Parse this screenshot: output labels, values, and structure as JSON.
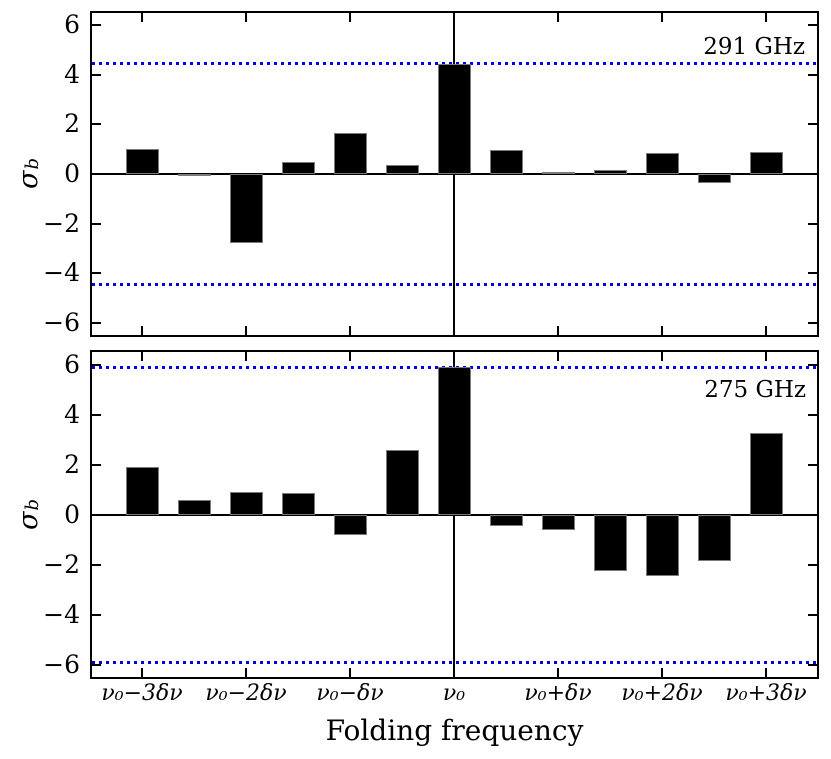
{
  "chart_data": {
    "type": "bar",
    "xlabel": "Folding frequency",
    "ylabel": "σ_b",
    "ylabel_base": "σ",
    "ylabel_sub": "b",
    "ylim": [
      -6.5,
      6.5
    ],
    "yticks": [
      6,
      4,
      2,
      0,
      -2,
      -4,
      -6
    ],
    "ytick_labels": [
      "6",
      "4",
      "2",
      "0",
      "−2",
      "−4",
      "−6"
    ],
    "x_tick_positions_delta_nu": [
      -3,
      -2,
      -1,
      0,
      1,
      2,
      3
    ],
    "x_tick_labels": [
      "ν₀−3δν",
      "ν₀−2δν",
      "ν₀−δν",
      "ν₀",
      "ν₀+δν",
      "ν₀+2δν",
      "ν₀+3δν"
    ],
    "xlim_delta_nu": [
      -3.5,
      3.5
    ],
    "x_categories_delta_nu": [
      -3,
      -2.5,
      -2,
      -1.5,
      -1,
      -0.5,
      0,
      0.5,
      1,
      1.5,
      2,
      2.5,
      3
    ],
    "grid": false,
    "legend": "none",
    "bar_color": "#000000",
    "threshold_line_color": "#0000e0",
    "threshold_line_style": "dotted",
    "panels": [
      {
        "name": "291 GHz",
        "values": [
          1.0,
          -0.1,
          -2.8,
          0.5,
          1.65,
          0.35,
          4.45,
          0.95,
          0.1,
          0.15,
          0.85,
          -0.35,
          0.9
        ],
        "threshold_sigma": 4.45
      },
      {
        "name": "275 GHz",
        "values": [
          1.9,
          0.6,
          0.9,
          0.85,
          -0.8,
          2.6,
          5.9,
          -0.45,
          -0.6,
          -2.25,
          -2.45,
          -1.85,
          3.25
        ],
        "threshold_sigma": 5.9
      }
    ]
  }
}
